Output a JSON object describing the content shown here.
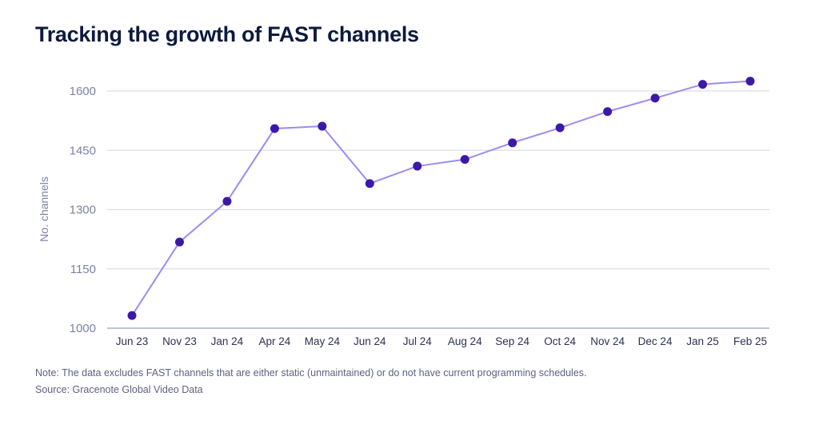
{
  "chart_data": {
    "type": "line",
    "title": "Tracking the growth of FAST channels",
    "xlabel": "",
    "ylabel": "No. channels",
    "categories": [
      "Jun 23",
      "Nov 23",
      "Jan 24",
      "Apr 24",
      "May 24",
      "Jun 24",
      "Jul 24",
      "Aug 24",
      "Sep 24",
      "Oct 24",
      "Nov 24",
      "Dec 24",
      "Jan 25",
      "Feb 25"
    ],
    "series": [
      {
        "name": "No. channels",
        "values": [
          1032,
          1218,
          1321,
          1505,
          1511,
          1366,
          1410,
          1427,
          1469,
          1507,
          1548,
          1582,
          1617,
          1625
        ]
      }
    ],
    "ylim": [
      1000,
      1600
    ],
    "yticks": [
      1000,
      1150,
      1300,
      1450,
      1600
    ],
    "ytick_labels": [
      "1000",
      "1150",
      "1300",
      "1450",
      "1600"
    ],
    "grid": "horizontal",
    "legend": "none",
    "colors": {
      "line": "#9b8cf2",
      "marker": "#3d18a8",
      "grid": "#dcdde8",
      "axis": "#9aa0bd",
      "tick_text": "#7d82a3",
      "xtick_text": "#2b3152"
    }
  },
  "notes": {
    "note": "Note: The data excludes FAST channels that are either static (unmaintained) or do not have current programming schedules.",
    "source": "Source: Gracenote Global Video Data"
  }
}
